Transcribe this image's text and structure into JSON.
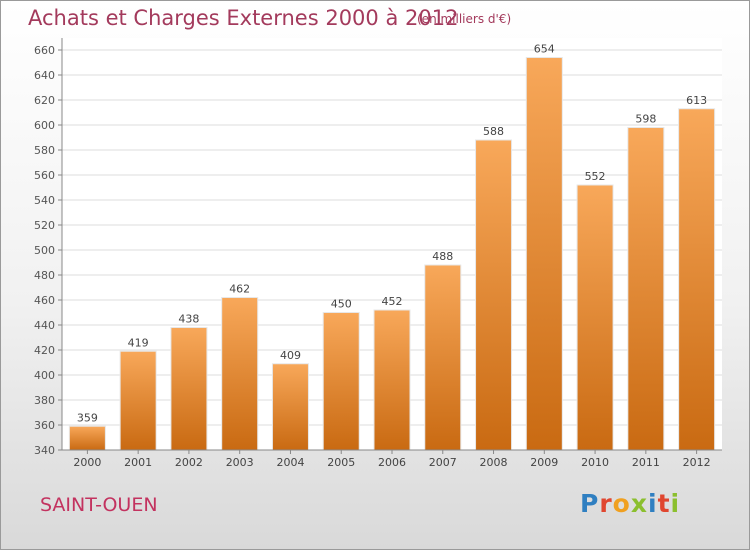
{
  "header": {
    "title": "Achats et Charges Externes 2000 à 2012",
    "subtitle": "(en milliers d'€)"
  },
  "footer": {
    "city": "SAINT-OUEN",
    "logo": [
      "P",
      "r",
      "o",
      "x",
      "i",
      "t",
      "i"
    ]
  },
  "colors": {
    "bar_top": "#f8a85a",
    "bar_bottom": "#c96a12",
    "title": "#a33a5c",
    "city": "#c3325f"
  },
  "chart_data": {
    "type": "bar",
    "title": "Achats et Charges Externes 2000 à 2012",
    "subtitle": "(en milliers d'€)",
    "categories": [
      "2000",
      "2001",
      "2002",
      "2003",
      "2004",
      "2005",
      "2006",
      "2007",
      "2008",
      "2009",
      "2010",
      "2011",
      "2012"
    ],
    "values": [
      359,
      419,
      438,
      462,
      409,
      450,
      452,
      488,
      588,
      654,
      552,
      598,
      613
    ],
    "ylim": [
      340,
      660
    ],
    "yticks": [
      340,
      360,
      380,
      400,
      420,
      440,
      460,
      480,
      500,
      520,
      540,
      560,
      580,
      600,
      620,
      640,
      660
    ],
    "grid": true,
    "data_labels": true
  }
}
